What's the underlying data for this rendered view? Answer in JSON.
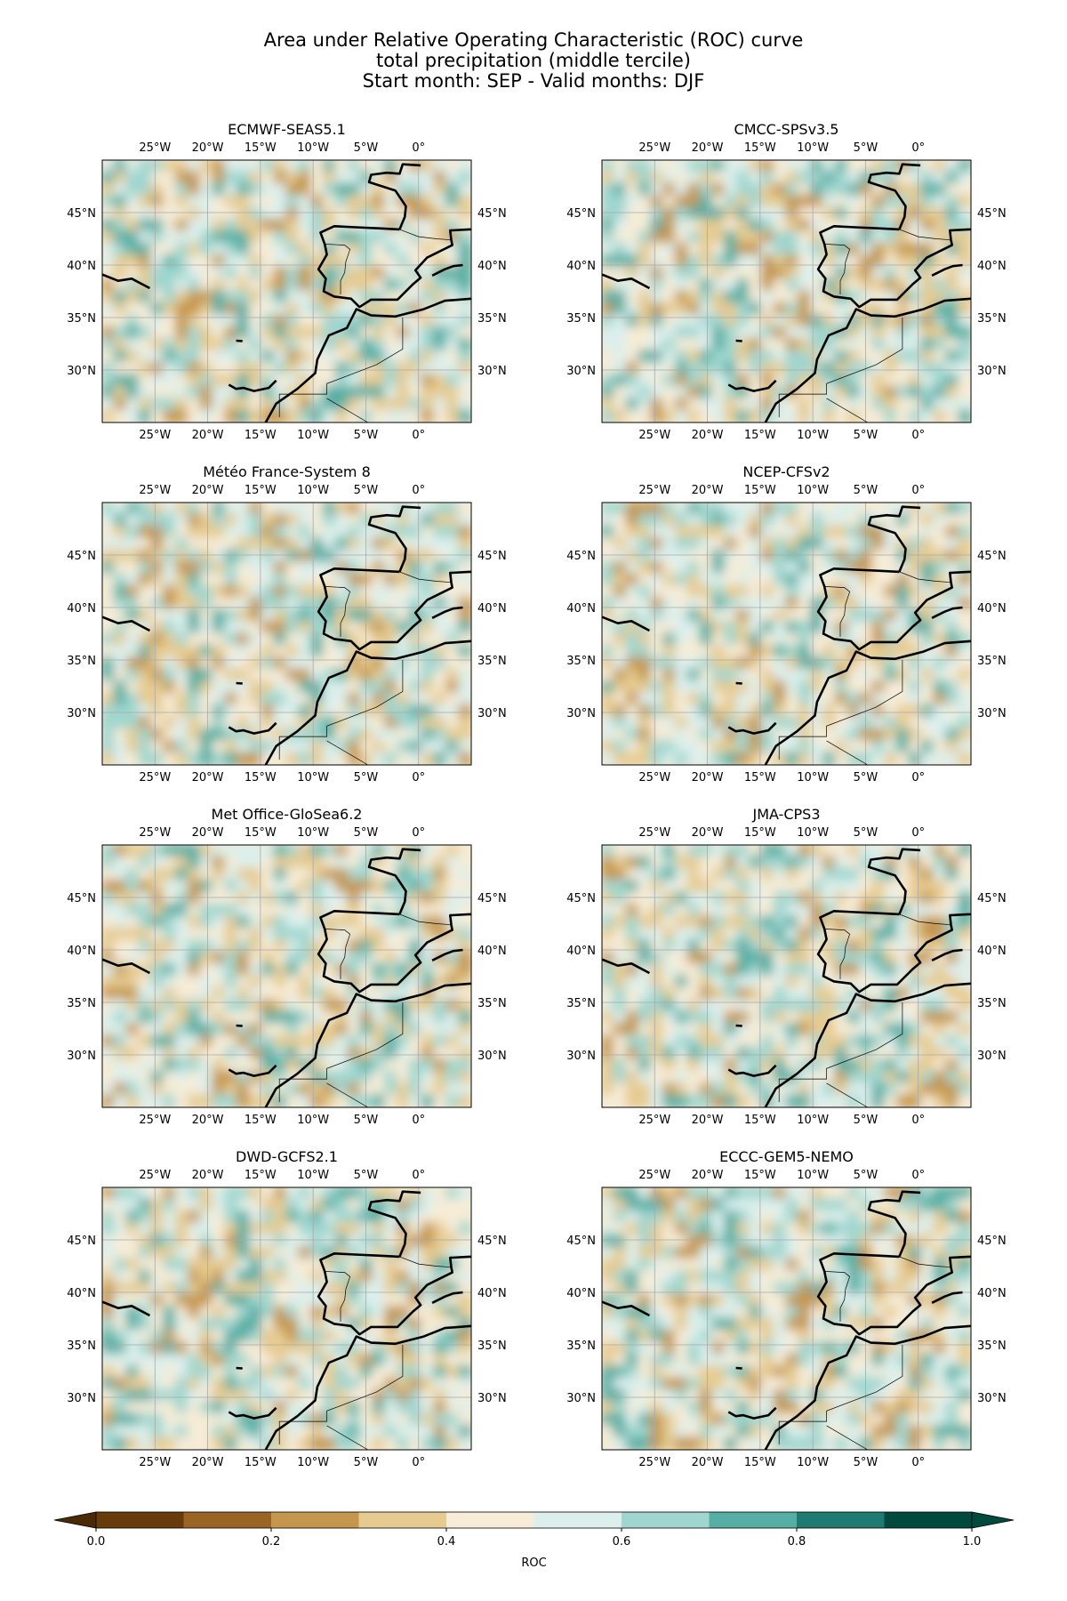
{
  "figure": {
    "title_lines": [
      "Area under Relative Operating Characteristic (ROC) curve",
      "total precipitation (middle tercile)",
      "Start month: SEP - Valid months: DJF"
    ]
  },
  "map_extent": {
    "lon_min": -30,
    "lon_max": 5,
    "lat_min": 25,
    "lat_max": 50
  },
  "ticks": {
    "lon": [
      {
        "value": -25,
        "label": "25°W"
      },
      {
        "value": -20,
        "label": "20°W"
      },
      {
        "value": -15,
        "label": "15°W"
      },
      {
        "value": -10,
        "label": "10°W"
      },
      {
        "value": -5,
        "label": "5°W"
      },
      {
        "value": 0,
        "label": "0°"
      }
    ],
    "lat": [
      {
        "value": 45,
        "label": "45°N"
      },
      {
        "value": 40,
        "label": "40°N"
      },
      {
        "value": 35,
        "label": "35°N"
      },
      {
        "value": 30,
        "label": "30°N"
      }
    ]
  },
  "panels": [
    {
      "title": "ECMWF-SEAS5.1"
    },
    {
      "title": "CMCC-SPSv3.5"
    },
    {
      "title": "Météo France-System 8"
    },
    {
      "title": "NCEP-CFSv2"
    },
    {
      "title": "Met Office-GloSea6.2"
    },
    {
      "title": "JMA-CPS3"
    },
    {
      "title": "DWD-GCFS2.1"
    },
    {
      "title": "ECCC-GEM5-NEMO"
    }
  ],
  "colorbar": {
    "label": "ROC",
    "colors": [
      "#4a2a05",
      "#683c0a",
      "#9a6424",
      "#c4964e",
      "#e6cb91",
      "#f6ecd7",
      "#dcefec",
      "#9fd6cf",
      "#57aea4",
      "#1d7b72",
      "#004a3d"
    ],
    "bounds": [
      0.0,
      0.1,
      0.2,
      0.3,
      0.4,
      0.5,
      0.6,
      0.7,
      0.8,
      0.9,
      1.0
    ],
    "tick_labels": [
      {
        "value": 0.0,
        "label": "0.0"
      },
      {
        "value": 0.2,
        "label": "0.2"
      },
      {
        "value": 0.4,
        "label": "0.4"
      },
      {
        "value": 0.6,
        "label": "0.6"
      },
      {
        "value": 0.8,
        "label": "0.8"
      },
      {
        "value": 1.0,
        "label": "1.0"
      }
    ],
    "extend": "both"
  }
}
